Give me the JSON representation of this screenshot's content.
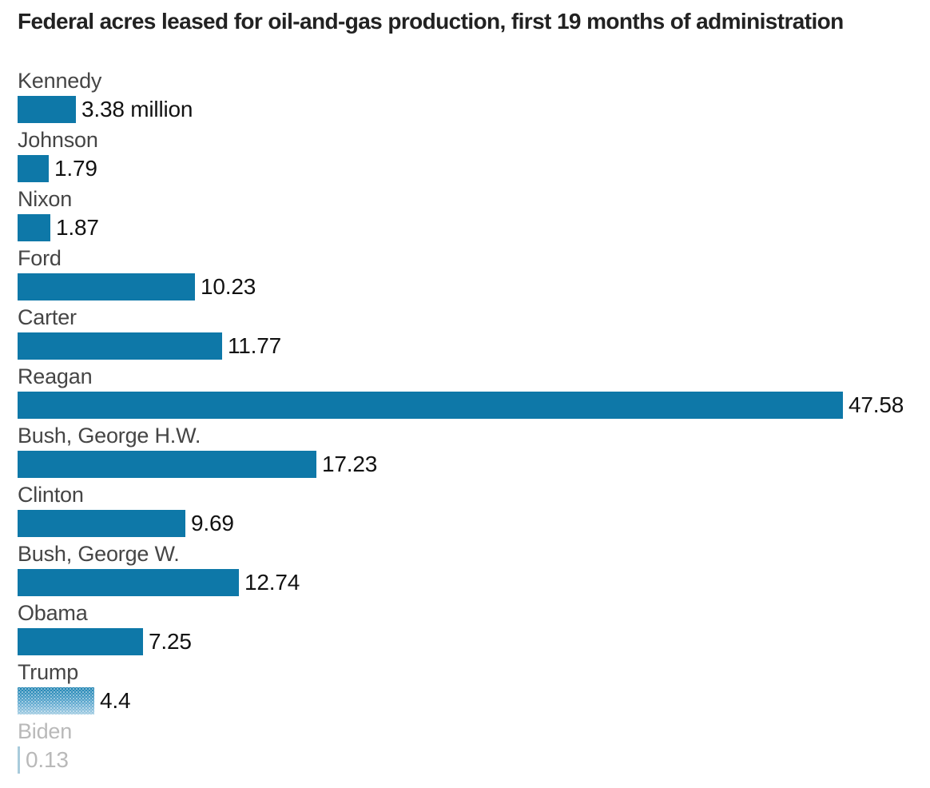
{
  "title": "Federal acres leased for oil-and-gas production, first 19 months of administration",
  "colors": {
    "bar": "#0e78a8",
    "bar_muted": "#a9cbdb",
    "title_text": "#222222",
    "label_text": "#454545",
    "value_text": "#121212",
    "muted_text": "#b9b9b9"
  },
  "chart_data": {
    "type": "bar",
    "orientation": "horizontal",
    "title": "Federal acres leased for oil-and-gas production, first 19 months of administration",
    "unit": "million acres",
    "xlabel": "",
    "ylabel": "",
    "xlim": [
      0,
      47.58
    ],
    "grid": false,
    "legend": "none",
    "categories": [
      "Kennedy",
      "Johnson",
      "Nixon",
      "Ford",
      "Carter",
      "Reagan",
      "Bush, George H.W.",
      "Clinton",
      "Bush, George W.",
      "Obama",
      "Trump",
      "Biden"
    ],
    "values": [
      3.38,
      1.79,
      1.87,
      10.23,
      11.77,
      47.58,
      17.23,
      9.69,
      12.74,
      7.25,
      4.4,
      0.13
    ],
    "value_labels": [
      "3.38 million",
      "1.79",
      "1.87",
      "10.23",
      "11.77",
      "47.58",
      "17.23",
      "9.69",
      "12.74",
      "7.25",
      "4.4",
      "0.13"
    ],
    "bar_styles": [
      "solid",
      "solid",
      "solid",
      "solid",
      "solid",
      "solid",
      "solid",
      "solid",
      "solid",
      "solid",
      "stippled",
      "muted"
    ]
  }
}
